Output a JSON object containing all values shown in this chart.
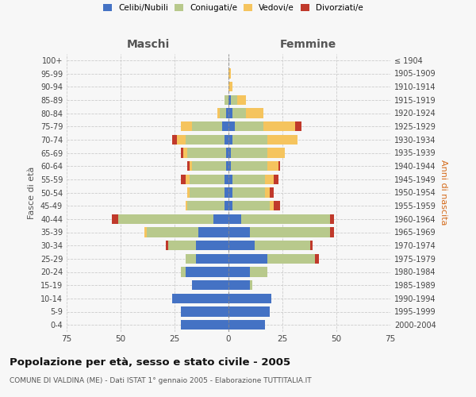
{
  "age_groups": [
    "0-4",
    "5-9",
    "10-14",
    "15-19",
    "20-24",
    "25-29",
    "30-34",
    "35-39",
    "40-44",
    "45-49",
    "50-54",
    "55-59",
    "60-64",
    "65-69",
    "70-74",
    "75-79",
    "80-84",
    "85-89",
    "90-94",
    "95-99",
    "100+"
  ],
  "birth_years": [
    "2000-2004",
    "1995-1999",
    "1990-1994",
    "1985-1989",
    "1980-1984",
    "1975-1979",
    "1970-1974",
    "1965-1969",
    "1960-1964",
    "1955-1959",
    "1950-1954",
    "1945-1949",
    "1940-1944",
    "1935-1939",
    "1930-1934",
    "1925-1929",
    "1920-1924",
    "1915-1919",
    "1910-1914",
    "1905-1909",
    "≤ 1904"
  ],
  "maschi": {
    "celibi": [
      22,
      22,
      26,
      17,
      20,
      15,
      15,
      14,
      7,
      2,
      2,
      2,
      1,
      1,
      2,
      3,
      1,
      0,
      0,
      0,
      0
    ],
    "coniugati": [
      0,
      0,
      0,
      0,
      2,
      5,
      13,
      24,
      44,
      17,
      16,
      16,
      16,
      18,
      18,
      14,
      3,
      2,
      0,
      0,
      0
    ],
    "vedovi": [
      0,
      0,
      0,
      0,
      0,
      0,
      0,
      1,
      0,
      1,
      1,
      2,
      1,
      2,
      4,
      5,
      1,
      0,
      0,
      0,
      0
    ],
    "divorziati": [
      0,
      0,
      0,
      0,
      0,
      0,
      1,
      0,
      3,
      0,
      0,
      2,
      1,
      1,
      2,
      0,
      0,
      0,
      0,
      0,
      0
    ]
  },
  "femmine": {
    "nubili": [
      17,
      19,
      20,
      10,
      10,
      18,
      12,
      10,
      6,
      2,
      2,
      2,
      1,
      1,
      2,
      3,
      2,
      1,
      0,
      0,
      0
    ],
    "coniugate": [
      0,
      0,
      0,
      1,
      8,
      22,
      26,
      37,
      41,
      17,
      15,
      15,
      17,
      17,
      16,
      13,
      6,
      3,
      0,
      0,
      0
    ],
    "vedove": [
      0,
      0,
      0,
      0,
      0,
      0,
      0,
      0,
      0,
      2,
      2,
      4,
      5,
      8,
      14,
      15,
      8,
      4,
      2,
      1,
      0
    ],
    "divorziate": [
      0,
      0,
      0,
      0,
      0,
      2,
      1,
      2,
      2,
      3,
      2,
      2,
      1,
      0,
      0,
      3,
      0,
      0,
      0,
      0,
      0
    ]
  },
  "colors": {
    "celibi": "#4472c4",
    "coniugati": "#b8c98c",
    "vedovi": "#f5c45e",
    "divorziati": "#c0392b"
  },
  "xlim": 75,
  "title": "Popolazione per età, sesso e stato civile - 2005",
  "subtitle": "COMUNE DI VALDINA (ME) - Dati ISTAT 1° gennaio 2005 - Elaborazione TUTTITALIA.IT",
  "ylabel_left": "Fasce di età",
  "ylabel_right": "Anni di nascita",
  "xlabel_left": "Maschi",
  "xlabel_right": "Femmine",
  "background_color": "#f7f7f7",
  "grid_color": "#cccccc"
}
